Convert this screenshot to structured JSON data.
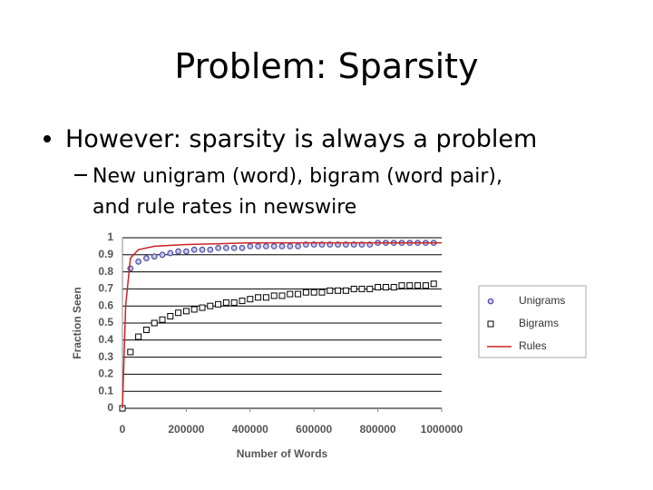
{
  "slide": {
    "title": "Problem: Sparsity",
    "bullet": "However: sparsity is always a problem",
    "sub_bullet": [
      "New unigram (word), bigram (word pair),",
      "and rule rates in newswire"
    ]
  },
  "chart_data": {
    "type": "scatter",
    "xlabel": "Number of Words",
    "ylabel": "Fraction Seen",
    "xlim": [
      0,
      1000000
    ],
    "xticks": [
      0,
      200000,
      400000,
      600000,
      800000,
      1000000
    ],
    "ylim": [
      0,
      1
    ],
    "yticks": [
      0,
      0.1,
      0.2,
      0.3,
      0.4,
      0.5,
      0.6,
      0.7,
      0.8,
      0.9,
      1
    ],
    "grid": true,
    "legend": "right",
    "series": [
      {
        "name": "Unigrams",
        "color": "#5050a0",
        "mode": "markers",
        "marker": "circle",
        "x": [
          0,
          25000,
          50000,
          75000,
          100000,
          125000,
          150000,
          175000,
          200000,
          225000,
          250000,
          275000,
          300000,
          325000,
          350000,
          375000,
          400000,
          425000,
          450000,
          475000,
          500000,
          525000,
          550000,
          575000,
          600000,
          625000,
          650000,
          675000,
          700000,
          725000,
          750000,
          775000,
          800000,
          825000,
          850000,
          875000,
          900000,
          925000,
          950000,
          975000
        ],
        "values": [
          0,
          0.82,
          0.86,
          0.88,
          0.89,
          0.9,
          0.91,
          0.92,
          0.92,
          0.93,
          0.93,
          0.93,
          0.94,
          0.94,
          0.94,
          0.94,
          0.95,
          0.95,
          0.95,
          0.95,
          0.95,
          0.95,
          0.95,
          0.96,
          0.96,
          0.96,
          0.96,
          0.96,
          0.96,
          0.96,
          0.96,
          0.96,
          0.97,
          0.97,
          0.97,
          0.97,
          0.97,
          0.97,
          0.97,
          0.97
        ]
      },
      {
        "name": "Bigrams",
        "color": "#000000",
        "mode": "markers",
        "marker": "square",
        "x": [
          0,
          25000,
          50000,
          75000,
          100000,
          125000,
          150000,
          175000,
          200000,
          225000,
          250000,
          275000,
          300000,
          325000,
          350000,
          375000,
          400000,
          425000,
          450000,
          475000,
          500000,
          525000,
          550000,
          575000,
          600000,
          625000,
          650000,
          675000,
          700000,
          725000,
          750000,
          775000,
          800000,
          825000,
          850000,
          875000,
          900000,
          925000,
          950000,
          975000
        ],
        "values": [
          0,
          0.33,
          0.42,
          0.46,
          0.5,
          0.52,
          0.54,
          0.56,
          0.57,
          0.58,
          0.59,
          0.6,
          0.61,
          0.62,
          0.62,
          0.63,
          0.64,
          0.65,
          0.65,
          0.66,
          0.66,
          0.67,
          0.67,
          0.68,
          0.68,
          0.68,
          0.69,
          0.69,
          0.69,
          0.7,
          0.7,
          0.7,
          0.71,
          0.71,
          0.71,
          0.72,
          0.72,
          0.72,
          0.72,
          0.73
        ]
      },
      {
        "name": "Rules",
        "color": "#cc2222",
        "mode": "line",
        "x": [
          0,
          10000,
          25000,
          50000,
          100000,
          200000,
          400000,
          600000,
          800000,
          1000000
        ],
        "values": [
          0,
          0.6,
          0.88,
          0.93,
          0.95,
          0.96,
          0.97,
          0.97,
          0.97,
          0.97
        ]
      }
    ]
  }
}
